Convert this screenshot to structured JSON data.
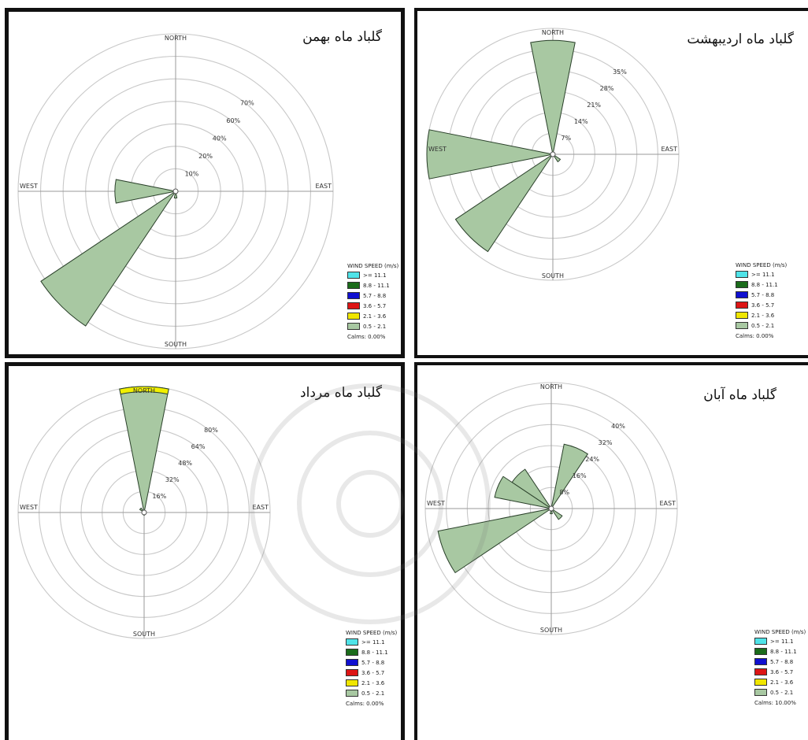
{
  "colors": {
    "petal": "#a8c8a2",
    "petal_stroke": "#2a402a",
    "grid": "#c8c8c8",
    "axis": "#9a9a9a",
    "highlight": "#f2f000"
  },
  "legend_bins": [
    {
      "label": ">= 11.1",
      "color": "#4fe3e8"
    },
    {
      "label": "8.8 - 11.1",
      "color": "#1a6b1a"
    },
    {
      "label": "5.7 - 8.8",
      "color": "#1010d0"
    },
    {
      "label": "3.6 - 5.7",
      "color": "#dd1515"
    },
    {
      "label": "2.1 - 3.6",
      "color": "#f0e600"
    },
    {
      "label": "0.5 - 2.1",
      "color": "#a8c8a2"
    }
  ],
  "chart_data": [
    {
      "type": "wind-rose",
      "title": "گلباد ماه بهمن",
      "compass": {
        "north": "NORTH",
        "south": "SOUTH",
        "east": "EAST",
        "west": "WEST"
      },
      "rings": [
        10,
        20,
        30,
        40,
        50,
        60,
        70
      ],
      "ring_labels": [
        "10%",
        "20%",
        "40%",
        "60%",
        "70%"
      ],
      "legend_title": "WIND SPEED (m/s)",
      "calms": "Calms: 0.00%",
      "petals": [
        {
          "direction_deg": 225,
          "percent": 72
        },
        {
          "direction_deg": 270,
          "percent": 27
        },
        {
          "direction_deg": 180,
          "percent": 3
        },
        {
          "direction_deg": 90,
          "percent": 1
        }
      ]
    },
    {
      "type": "wind-rose",
      "title": "گلباد ماه اردیبهشت",
      "compass": {
        "north": "NORTH",
        "south": "SOUTH",
        "east": "EAST",
        "west": "WEST"
      },
      "rings": [
        7,
        14,
        21,
        28,
        35,
        42
      ],
      "ring_labels": [
        "7%",
        "14%",
        "21%",
        "28%",
        "35%"
      ],
      "legend_title": "WIND SPEED (m/s)",
      "calms": "Calms: 0.00%",
      "petals": [
        {
          "direction_deg": 0,
          "percent": 38
        },
        {
          "direction_deg": 270,
          "percent": 42
        },
        {
          "direction_deg": 225,
          "percent": 39
        },
        {
          "direction_deg": 135,
          "percent": 3
        }
      ]
    },
    {
      "type": "wind-rose",
      "title": "گلباد ماه مرداد",
      "compass": {
        "north": "NORTH",
        "south": "SOUTH",
        "east": "EAST",
        "west": "WEST"
      },
      "rings": [
        16,
        32,
        48,
        64,
        80,
        96
      ],
      "ring_labels": [
        "16%",
        "32%",
        "48%",
        "64%",
        "80%"
      ],
      "legend_title": "WIND SPEED (m/s)",
      "calms": "Calms: 0.00%",
      "petals": [
        {
          "direction_deg": 0,
          "percent": 96,
          "highlight_band": [
            92,
            96
          ]
        },
        {
          "direction_deg": 315,
          "percent": 4
        },
        {
          "direction_deg": 180,
          "percent": 2
        }
      ]
    },
    {
      "type": "wind-rose",
      "title": "گلباد ماه آبان",
      "compass": {
        "north": "NORTH",
        "south": "SOUTH",
        "east": "EAST",
        "west": "WEST"
      },
      "rings": [
        8,
        16,
        24,
        32,
        40,
        48
      ],
      "ring_labels": [
        "8%",
        "16%",
        "24%",
        "32%",
        "40%"
      ],
      "legend_title": "WIND SPEED (m/s)",
      "calms": "Calms: 10.00%",
      "petals": [
        {
          "direction_deg": 22.5,
          "percent": 25
        },
        {
          "direction_deg": 315,
          "percent": 18
        },
        {
          "direction_deg": 292.5,
          "percent": 22
        },
        {
          "direction_deg": 247.5,
          "percent": 44
        },
        {
          "direction_deg": 135,
          "percent": 5
        },
        {
          "direction_deg": 180,
          "percent": 2
        }
      ]
    }
  ]
}
